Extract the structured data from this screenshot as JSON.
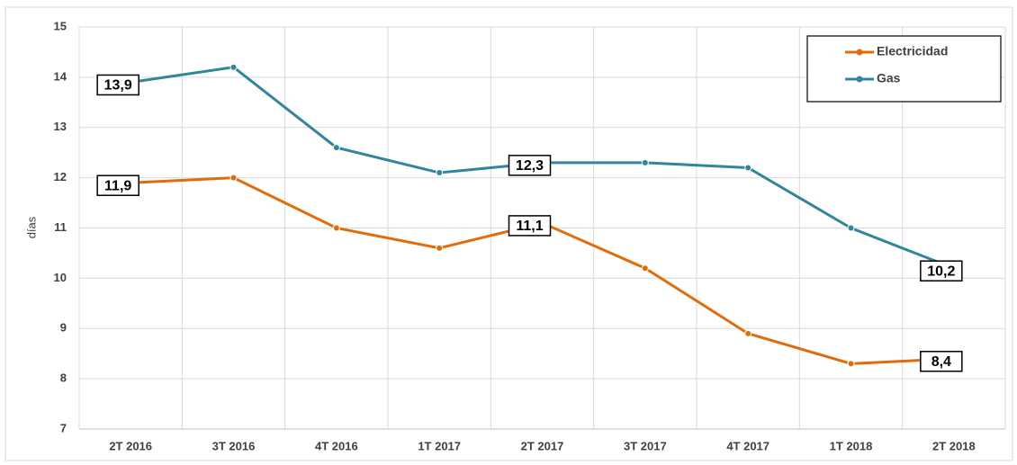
{
  "chart_data": {
    "type": "line",
    "y_label": "días",
    "categories": [
      "2T 2016",
      "3T 2016",
      "4T 2016",
      "1T 2017",
      "2T 2017",
      "3T 2017",
      "4T 2017",
      "1T 2018",
      "2T 2018"
    ],
    "series": [
      {
        "name": "Electricidad",
        "color": "#e36c0a",
        "values": [
          11.9,
          12.0,
          11.0,
          10.6,
          11.1,
          10.2,
          8.9,
          8.3,
          8.4
        ],
        "value_labels": [
          "11,9",
          null,
          null,
          null,
          "11,1",
          null,
          null,
          null,
          "8,4"
        ]
      },
      {
        "name": "Gas",
        "color": "#31859c",
        "values": [
          13.9,
          14.2,
          12.6,
          12.1,
          12.3,
          12.3,
          12.2,
          11.0,
          10.2
        ],
        "value_labels": [
          "13,9",
          null,
          null,
          null,
          "12,3",
          null,
          null,
          null,
          "10,2"
        ]
      }
    ],
    "ylim": [
      7,
      15
    ],
    "yticks": [
      7,
      8,
      9,
      10,
      11,
      12,
      13,
      14,
      15
    ],
    "grid": true,
    "legend": "top-right"
  }
}
